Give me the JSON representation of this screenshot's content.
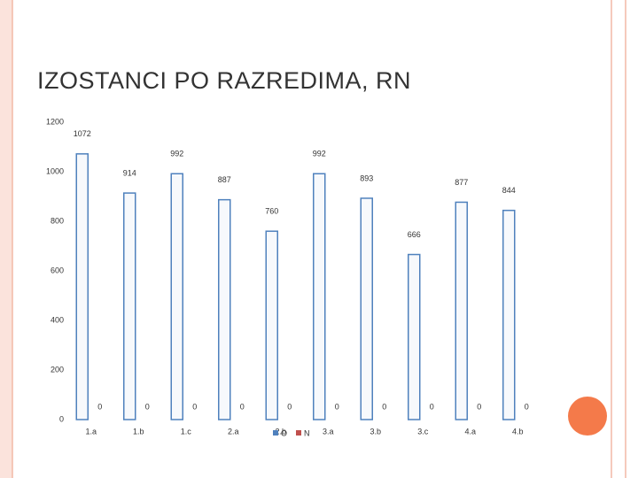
{
  "chart_data": {
    "type": "bar",
    "title": "IZOSTANCI PO RAZREDIMA, RN",
    "categories": [
      "1.a",
      "1.b",
      "1.c",
      "2.a",
      "2.b",
      "3.a",
      "3.b",
      "3.c",
      "4.a",
      "4.b"
    ],
    "series": [
      {
        "name": "O",
        "color": "#4f81bd",
        "values": [
          1072,
          914,
          992,
          887,
          760,
          992,
          893,
          666,
          877,
          844
        ]
      },
      {
        "name": "N",
        "color": "#c0504d",
        "values": [
          0,
          0,
          0,
          0,
          0,
          0,
          0,
          0,
          0,
          0
        ]
      }
    ],
    "ylim": [
      0,
      1200
    ],
    "yticks": [
      0,
      200,
      400,
      600,
      800,
      1000,
      1200
    ],
    "grid": false,
    "legend": "bottom"
  }
}
